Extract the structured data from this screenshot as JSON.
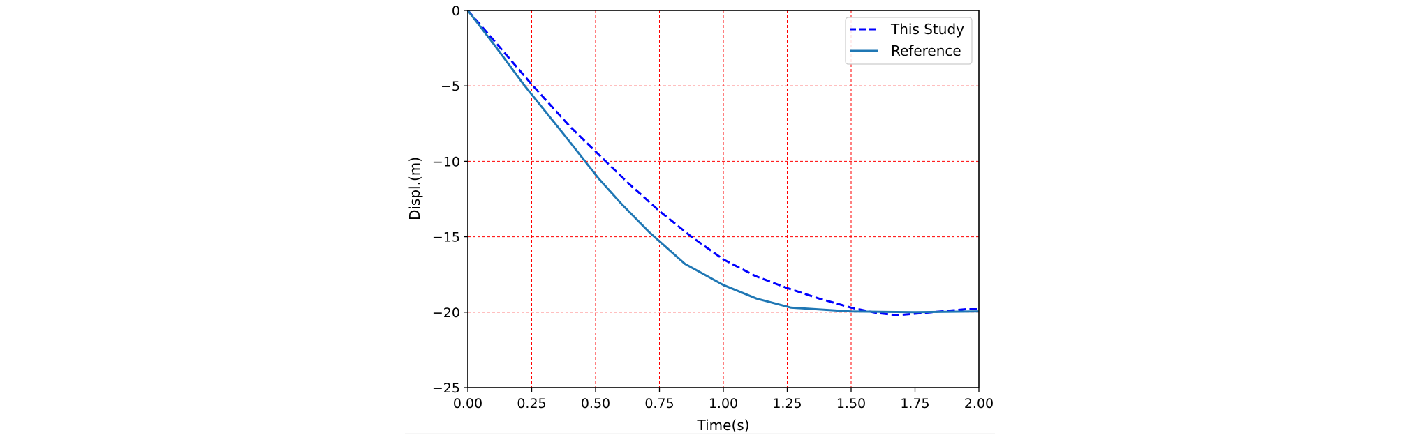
{
  "chart_data": {
    "type": "line",
    "title": "",
    "xlabel": "Time(s)",
    "ylabel": "Displ.(m)",
    "xlim": [
      0,
      2
    ],
    "ylim": [
      -25,
      0
    ],
    "xticks": [
      0,
      0.25,
      0.5,
      0.75,
      1.0,
      1.25,
      1.5,
      1.75,
      2.0
    ],
    "xtick_labels": [
      "0.00",
      "0.25",
      "0.50",
      "0.75",
      "1.00",
      "1.25",
      "1.50",
      "1.75",
      "2.00"
    ],
    "yticks": [
      0,
      -5,
      -10,
      -15,
      -20,
      -25
    ],
    "ytick_labels": [
      "0",
      "−5",
      "−10",
      "−15",
      "−20",
      "−25"
    ],
    "grid": {
      "on": true,
      "color": "#ff0000",
      "style": "dashed"
    },
    "legend": {
      "position": "upper right",
      "entries": [
        "This Study",
        "Reference"
      ]
    },
    "series": [
      {
        "name": "This Study",
        "color": "#0000ff",
        "style": "dashed",
        "x": [
          0,
          0.1,
          0.25,
          0.4,
          0.5,
          0.625,
          0.75,
          0.875,
          1.0,
          1.125,
          1.25,
          1.375,
          1.5,
          1.6,
          1.68,
          1.75,
          1.85,
          1.95,
          2.0
        ],
        "y": [
          0,
          -1.95,
          -4.9,
          -7.7,
          -9.35,
          -11.4,
          -13.3,
          -15.0,
          -16.5,
          -17.6,
          -18.4,
          -19.1,
          -19.7,
          -20.05,
          -20.2,
          -20.1,
          -19.95,
          -19.8,
          -19.8
        ]
      },
      {
        "name": "Reference",
        "color": "#1f77b4",
        "style": "solid",
        "x": [
          0,
          0.1,
          0.223,
          0.375,
          0.51,
          0.6,
          0.71,
          0.85,
          1.0,
          1.13,
          1.265,
          1.5,
          1.75,
          2.0
        ],
        "y": [
          0,
          -2.2,
          -5.0,
          -8.2,
          -11.1,
          -12.8,
          -14.7,
          -16.8,
          -18.2,
          -19.1,
          -19.7,
          -19.95,
          -20.0,
          -19.95
        ]
      }
    ]
  }
}
